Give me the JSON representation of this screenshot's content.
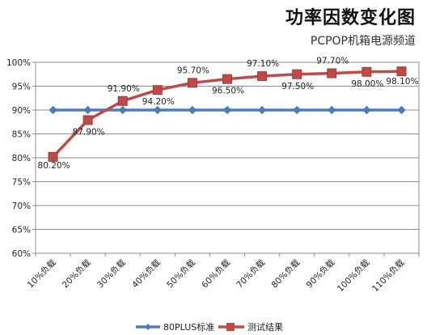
{
  "chart_data": {
    "type": "line",
    "title": "功率因数变化图",
    "subtitle": "PCPOP机箱电源频道",
    "categories": [
      "10%负载",
      "20%负载",
      "30%负载",
      "40%负载",
      "50%负载",
      "60%负载",
      "70%负载",
      "80%负载",
      "90%负载",
      "100%负载",
      "110%负载"
    ],
    "ylim": [
      60,
      100
    ],
    "yticks": [
      "60%",
      "65%",
      "70%",
      "75%",
      "80%",
      "85%",
      "90%",
      "95%",
      "100%"
    ],
    "grid": true,
    "legend_position": "bottom",
    "series": [
      {
        "name": "80PLUS标准",
        "color": "#4a7ebb",
        "values": [
          90,
          90,
          90,
          90,
          90,
          90,
          90,
          90,
          90,
          90,
          90
        ],
        "labels": []
      },
      {
        "name": "测试结果",
        "color": "#be4b48",
        "values": [
          80.2,
          87.9,
          91.9,
          94.2,
          95.7,
          96.5,
          97.1,
          97.5,
          97.7,
          98.0,
          98.1
        ],
        "labels": [
          "80.20%",
          "87.90%",
          "91.90%",
          "94.20%",
          "95.70%",
          "96.50%",
          "97.10%",
          "97.50%",
          "97.70%",
          "98.00%",
          "98.10%"
        ]
      }
    ]
  }
}
